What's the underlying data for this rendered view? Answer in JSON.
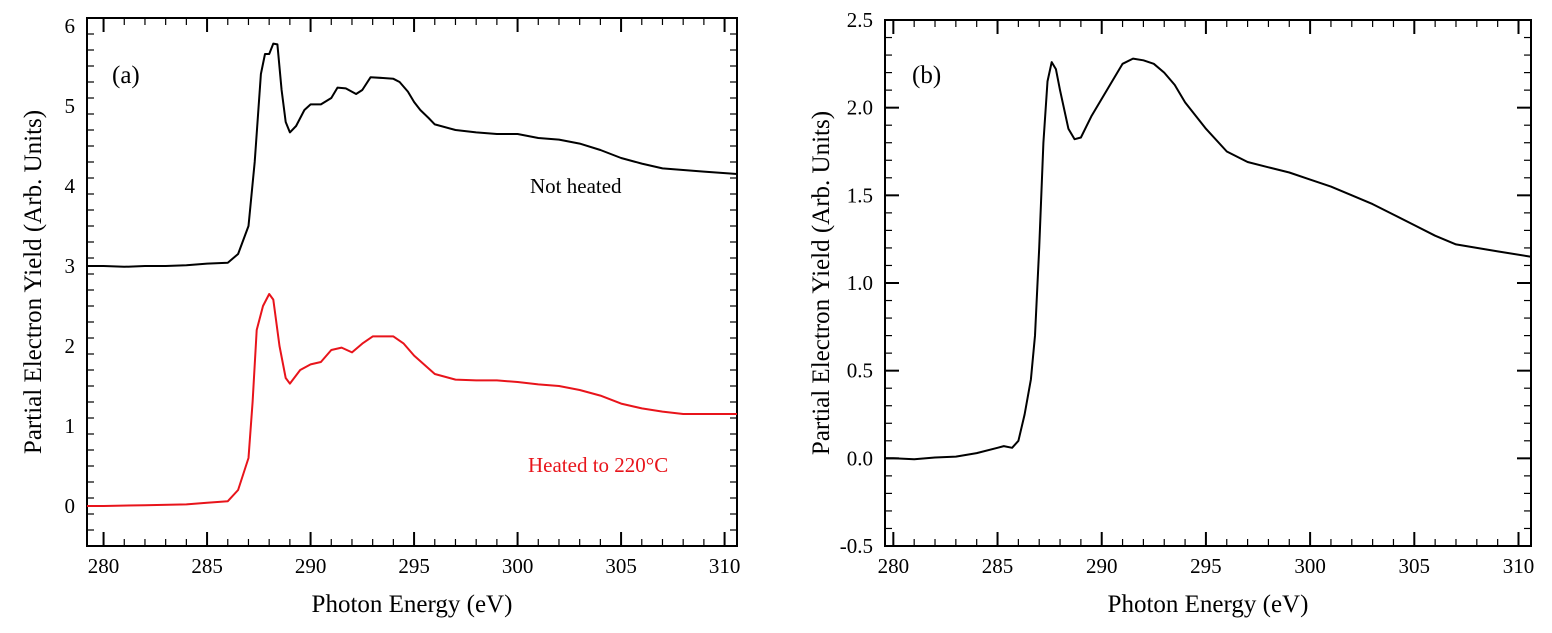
{
  "chart_data": [
    {
      "type": "line",
      "panel_label": "(a)",
      "xlabel": "Photon Energy (eV)",
      "ylabel": "Partial Electron Yield (Arb. Units)",
      "xlim": [
        279.2,
        310.6
      ],
      "ylim": [
        -0.5,
        6.1
      ],
      "xticks": [
        280,
        285,
        290,
        295,
        300,
        305,
        310
      ],
      "yticks": [
        0,
        1,
        2,
        3,
        4,
        5,
        6
      ],
      "x_minor_step": 1,
      "y_minor_step": 0.2,
      "grid": false,
      "series": [
        {
          "name": "Not heated",
          "color": "#000000",
          "x": [
            279.2,
            280,
            281,
            282,
            283,
            284,
            285,
            286,
            286.5,
            287,
            287.3,
            287.6,
            287.8,
            288,
            288.2,
            288.4,
            288.6,
            288.8,
            289,
            289.3,
            289.7,
            290,
            290.5,
            291,
            291.3,
            291.7,
            292.2,
            292.5,
            292.9,
            293.5,
            294,
            294.3,
            294.7,
            295,
            295.3,
            295.7,
            296,
            297,
            298,
            299,
            300,
            301,
            302,
            303,
            304,
            305,
            306,
            307,
            308,
            309,
            310.6
          ],
          "y": [
            3.0,
            3.0,
            2.99,
            3.0,
            3.0,
            3.01,
            3.03,
            3.04,
            3.15,
            3.5,
            4.3,
            5.4,
            5.65,
            5.65,
            5.78,
            5.77,
            5.2,
            4.8,
            4.67,
            4.75,
            4.95,
            5.02,
            5.02,
            5.1,
            5.23,
            5.22,
            5.15,
            5.2,
            5.36,
            5.35,
            5.34,
            5.3,
            5.18,
            5.05,
            4.95,
            4.85,
            4.77,
            4.7,
            4.67,
            4.65,
            4.65,
            4.6,
            4.58,
            4.53,
            4.45,
            4.35,
            4.28,
            4.22,
            4.2,
            4.18,
            4.15
          ]
        },
        {
          "name": "Heated to 220°C",
          "color": "#e8141b",
          "x": [
            279.2,
            280,
            282,
            284,
            285,
            286,
            286.5,
            287,
            287.2,
            287.4,
            287.7,
            288,
            288.2,
            288.5,
            288.8,
            289,
            289.5,
            290,
            290.5,
            291,
            291.5,
            292,
            292.5,
            293,
            294,
            294.5,
            295,
            296,
            297,
            298,
            299,
            300,
            301,
            302,
            303,
            304,
            305,
            306,
            307,
            308,
            309,
            310.6
          ],
          "y": [
            0,
            0,
            0.01,
            0.02,
            0.04,
            0.06,
            0.2,
            0.6,
            1.3,
            2.2,
            2.5,
            2.65,
            2.58,
            2.0,
            1.6,
            1.53,
            1.7,
            1.77,
            1.8,
            1.95,
            1.98,
            1.92,
            2.03,
            2.12,
            2.12,
            2.03,
            1.88,
            1.65,
            1.58,
            1.57,
            1.57,
            1.55,
            1.52,
            1.5,
            1.45,
            1.38,
            1.28,
            1.22,
            1.18,
            1.15,
            1.15,
            1.15
          ]
        }
      ]
    },
    {
      "type": "line",
      "panel_label": "(b)",
      "xlabel": "Photon Energy (eV)",
      "ylabel": "Partial Electron Yield (Arb. Units)",
      "xlim": [
        279.6,
        310.6
      ],
      "ylim": [
        -0.5,
        2.5
      ],
      "xticks": [
        280,
        285,
        290,
        295,
        300,
        305,
        310
      ],
      "yticks": [
        -0.5,
        0.0,
        0.5,
        1.0,
        1.5,
        2.0,
        2.5
      ],
      "ytick_labels": [
        "-0.5",
        "0.0",
        "0.5",
        "1.0",
        "1.5",
        "2.0",
        "2.5"
      ],
      "x_minor_step": 1,
      "y_minor_step": 0.1,
      "grid": false,
      "series": [
        {
          "color": "#000000",
          "x": [
            279.6,
            280,
            281,
            282,
            283,
            284,
            285,
            285.3,
            285.7,
            286,
            286.3,
            286.6,
            286.8,
            287,
            287.2,
            287.4,
            287.6,
            287.8,
            288,
            288.4,
            288.7,
            289,
            289.5,
            290,
            290.5,
            291,
            291.5,
            292,
            292.5,
            293,
            293.5,
            294,
            295,
            296,
            297,
            298,
            299,
            300,
            301,
            302,
            303,
            304,
            305,
            306,
            307,
            308,
            309,
            310.6
          ],
          "y": [
            0,
            0,
            -0.005,
            0.005,
            0.01,
            0.03,
            0.06,
            0.07,
            0.06,
            0.1,
            0.25,
            0.45,
            0.7,
            1.2,
            1.8,
            2.15,
            2.26,
            2.22,
            2.1,
            1.88,
            1.82,
            1.83,
            1.95,
            2.05,
            2.15,
            2.25,
            2.28,
            2.27,
            2.25,
            2.2,
            2.13,
            2.03,
            1.88,
            1.75,
            1.69,
            1.66,
            1.63,
            1.59,
            1.55,
            1.5,
            1.45,
            1.39,
            1.33,
            1.27,
            1.22,
            1.2,
            1.18,
            1.15
          ]
        }
      ]
    }
  ]
}
